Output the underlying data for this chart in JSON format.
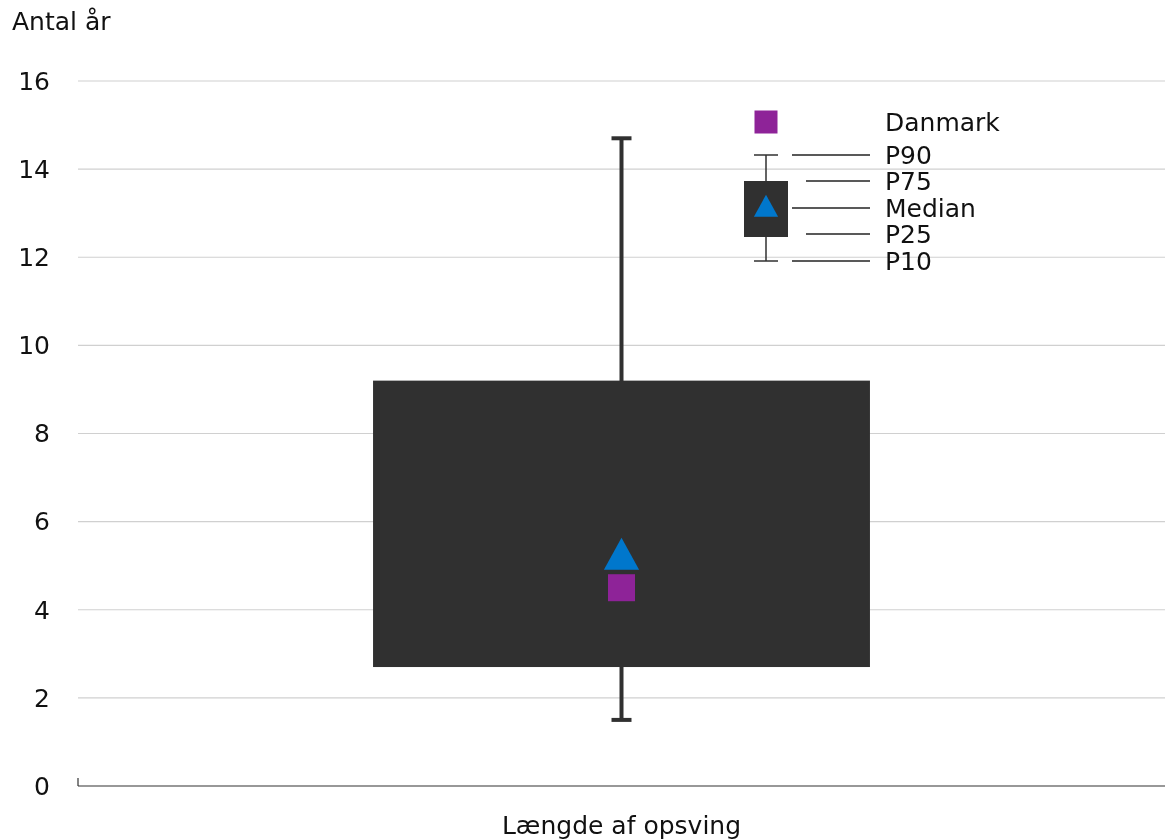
{
  "chart_data": {
    "type": "box",
    "ylabel": "Antal år",
    "categories": [
      "Længde af opsving"
    ],
    "series": [
      {
        "color": "#303030",
        "boxes": [
          {
            "low": 1.5,
            "q1": 2.7,
            "median": 5.2,
            "q3": 9.2,
            "high": 14.7
          }
        ]
      },
      {
        "type": "scatter",
        "name": "Danmark",
        "color": "#8e2398",
        "marker": "square",
        "x": [
          "Længde af opsving"
        ],
        "values": [
          4.5
        ]
      }
    ],
    "ylim": [
      0,
      16
    ],
    "yticks": [
      0,
      2,
      4,
      6,
      8,
      10,
      12,
      14,
      16
    ],
    "grid": "y",
    "legend": "top right",
    "annotations": [
      "P90",
      "P75",
      "Median",
      "P25",
      "P10"
    ]
  }
}
